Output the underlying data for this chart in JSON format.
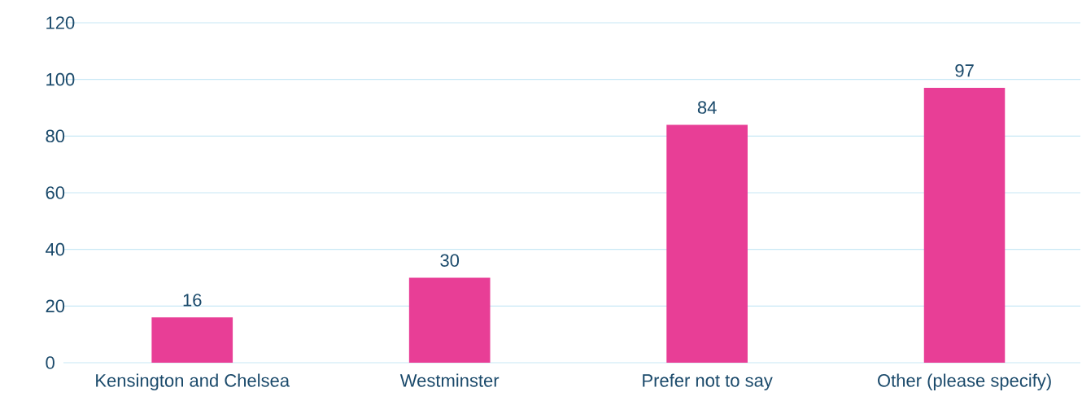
{
  "chart_data": {
    "type": "bar",
    "categories": [
      "Kensington and Chelsea",
      "Westminster",
      "Prefer not to say",
      "Other (please specify)"
    ],
    "values": [
      16,
      30,
      84,
      97
    ],
    "color": "#e83e96",
    "ylim": [
      0,
      120
    ],
    "yticks": [
      0,
      20,
      40,
      60,
      80,
      100,
      120
    ],
    "grid": "y",
    "data_labels": true
  }
}
